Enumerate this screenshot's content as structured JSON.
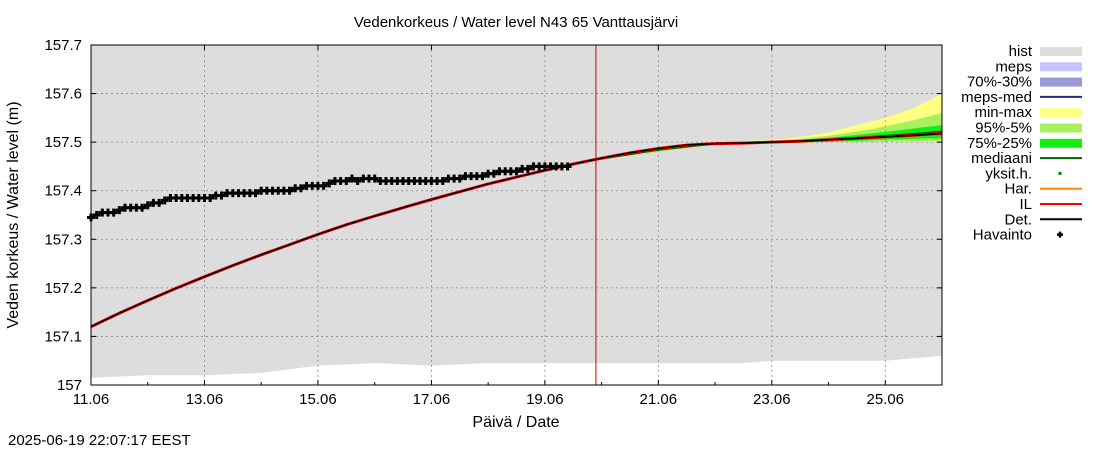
{
  "chart_data": {
    "type": "line",
    "title": "Vedenkorkeus / Water level   N43 65 Vanttausjärvi",
    "xlabel": "Päivä / Date",
    "ylabel": "Veden korkeus / Water level (m)",
    "timestamp": "2025-06-19 22:07:17 EEST",
    "xlim": [
      11.0,
      26.0
    ],
    "ylim": [
      157.0,
      157.7
    ],
    "x_ticks": [
      {
        "value": 11,
        "label": "11.06"
      },
      {
        "value": 13,
        "label": "13.06"
      },
      {
        "value": 15,
        "label": "15.06"
      },
      {
        "value": 17,
        "label": "17.06"
      },
      {
        "value": 19,
        "label": "19.06"
      },
      {
        "value": 21,
        "label": "21.06"
      },
      {
        "value": 23,
        "label": "23.06"
      },
      {
        "value": 25,
        "label": "25.06"
      }
    ],
    "y_ticks": [
      {
        "value": 157.0,
        "label": "157"
      },
      {
        "value": 157.1,
        "label": "157.1"
      },
      {
        "value": 157.2,
        "label": "157.2"
      },
      {
        "value": 157.3,
        "label": "157.3"
      },
      {
        "value": 157.4,
        "label": "157.4"
      },
      {
        "value": 157.5,
        "label": "157.5"
      },
      {
        "value": 157.6,
        "label": "157.6"
      },
      {
        "value": 157.7,
        "label": "157.7"
      }
    ],
    "forecast_start": 19.9,
    "legend": [
      {
        "key": "hist",
        "label": "hist",
        "color": "#dddddd",
        "style": "box"
      },
      {
        "key": "meps",
        "label": "meps",
        "color": "#c4c4ff",
        "style": "box"
      },
      {
        "key": "p70_30",
        "label": "70%-30%",
        "color": "#9a9ad8",
        "style": "box"
      },
      {
        "key": "meps_med",
        "label": "meps-med",
        "color": "#2a2a7a",
        "style": "line"
      },
      {
        "key": "minmax",
        "label": "min-max",
        "color": "#ffff80",
        "style": "box"
      },
      {
        "key": "p95_5",
        "label": "95%-5%",
        "color": "#a8f060",
        "style": "box"
      },
      {
        "key": "p75_25",
        "label": "75%-25%",
        "color": "#11ee11",
        "style": "box"
      },
      {
        "key": "mediaani",
        "label": "mediaani",
        "color": "#006400",
        "style": "line"
      },
      {
        "key": "yksith",
        "label": "yksit.h.",
        "color": "#008000",
        "style": "dot"
      },
      {
        "key": "har",
        "label": "Har.",
        "color": "#ff8c00",
        "style": "line"
      },
      {
        "key": "il",
        "label": "IL",
        "color": "#ff0000",
        "style": "line"
      },
      {
        "key": "det",
        "label": "Det.",
        "color": "#000000",
        "style": "line"
      },
      {
        "key": "havainto",
        "label": "Havainto",
        "color": "#000000",
        "style": "plus"
      }
    ],
    "series": [
      {
        "name": "hist",
        "type": "band",
        "x": [
          11.0,
          12.0,
          13.0,
          14.0,
          15.0,
          16.0,
          17.0,
          18.0,
          19.0,
          20.0,
          21.0,
          22.0,
          22.5,
          23.0,
          24.0,
          25.0,
          26.0
        ],
        "lower": [
          157.015,
          157.02,
          157.02,
          157.025,
          157.04,
          157.045,
          157.04,
          157.045,
          157.045,
          157.045,
          157.045,
          157.045,
          157.045,
          157.05,
          157.05,
          157.05,
          157.06
        ],
        "upper": [
          157.7,
          157.7,
          157.7,
          157.7,
          157.7,
          157.7,
          157.7,
          157.7,
          157.7,
          157.7,
          157.7,
          157.7,
          157.7,
          157.7,
          157.7,
          157.7,
          157.7
        ]
      },
      {
        "name": "min-max",
        "type": "band",
        "x": [
          20.0,
          21.0,
          22.0,
          23.0,
          23.5,
          24.0,
          24.5,
          25.0,
          25.5,
          26.0
        ],
        "lower": [
          157.465,
          157.48,
          157.495,
          157.498,
          157.498,
          157.5,
          157.5,
          157.5,
          157.5,
          157.502
        ],
        "upper": [
          157.468,
          157.49,
          157.5,
          157.505,
          157.51,
          157.52,
          157.535,
          157.55,
          157.57,
          157.6
        ]
      },
      {
        "name": "95%-5%",
        "type": "band",
        "x": [
          20.0,
          21.0,
          22.0,
          23.0,
          23.5,
          24.0,
          24.5,
          25.0,
          25.5,
          26.0
        ],
        "lower": [
          157.465,
          157.48,
          157.495,
          157.498,
          157.499,
          157.5,
          157.5,
          157.501,
          157.502,
          157.503
        ],
        "upper": [
          157.467,
          157.488,
          157.5,
          157.503,
          157.507,
          157.513,
          157.522,
          157.532,
          157.545,
          157.56
        ]
      },
      {
        "name": "75%-25%",
        "type": "band",
        "x": [
          20.0,
          21.0,
          22.0,
          23.0,
          23.5,
          24.0,
          24.5,
          25.0,
          25.5,
          26.0
        ],
        "lower": [
          157.466,
          157.482,
          157.496,
          157.499,
          157.5,
          157.501,
          157.503,
          157.505,
          157.507,
          157.508
        ],
        "upper": [
          157.467,
          157.486,
          157.499,
          157.502,
          157.505,
          157.509,
          157.515,
          157.521,
          157.528,
          157.535
        ]
      },
      {
        "name": "mediaani",
        "type": "line",
        "x": [
          20.0,
          21.0,
          22.0,
          23.0,
          23.5,
          24.0,
          24.5,
          25.0,
          25.5,
          26.0
        ],
        "y": [
          157.466,
          157.484,
          157.497,
          157.5,
          157.502,
          157.505,
          157.509,
          157.513,
          157.517,
          157.522
        ]
      },
      {
        "name": "Det.",
        "type": "line",
        "x": [
          11.0,
          11.5,
          12.0,
          12.5,
          13.0,
          13.5,
          14.0,
          14.5,
          15.0,
          15.5,
          16.0,
          16.5,
          17.0,
          17.5,
          18.0,
          18.5,
          19.0,
          19.5,
          20.0,
          20.5,
          21.0,
          21.5,
          22.0,
          22.5,
          23.0,
          23.5,
          24.0,
          24.5,
          25.0,
          25.5,
          26.0
        ],
        "y": [
          157.12,
          157.148,
          157.174,
          157.199,
          157.223,
          157.246,
          157.268,
          157.289,
          157.31,
          157.33,
          157.348,
          157.365,
          157.382,
          157.398,
          157.414,
          157.428,
          157.442,
          157.455,
          157.467,
          157.478,
          157.487,
          157.494,
          157.497,
          157.498,
          157.5,
          157.502,
          157.505,
          157.508,
          157.511,
          157.514,
          157.518
        ]
      },
      {
        "name": "Havainto",
        "type": "scatter",
        "x": [
          11.0,
          11.1,
          11.2,
          11.3,
          11.4,
          11.5,
          11.6,
          11.7,
          11.8,
          11.9,
          12.0,
          12.1,
          12.2,
          12.3,
          12.4,
          12.5,
          12.6,
          12.7,
          12.8,
          12.9,
          13.0,
          13.1,
          13.2,
          13.3,
          13.4,
          13.5,
          13.6,
          13.7,
          13.8,
          13.9,
          14.0,
          14.1,
          14.2,
          14.3,
          14.4,
          14.5,
          14.6,
          14.7,
          14.8,
          14.9,
          15.0,
          15.1,
          15.2,
          15.3,
          15.4,
          15.5,
          15.6,
          15.7,
          15.8,
          15.9,
          16.0,
          16.1,
          16.2,
          16.3,
          16.4,
          16.5,
          16.6,
          16.7,
          16.8,
          16.9,
          17.0,
          17.1,
          17.2,
          17.3,
          17.4,
          17.5,
          17.6,
          17.7,
          17.8,
          17.9,
          18.0,
          18.1,
          18.2,
          18.3,
          18.4,
          18.5,
          18.6,
          18.7,
          18.8,
          18.9,
          19.0,
          19.1,
          19.2,
          19.3,
          19.4
        ],
        "y": [
          157.345,
          157.35,
          157.355,
          157.355,
          157.355,
          157.36,
          157.365,
          157.365,
          157.365,
          157.365,
          157.37,
          157.375,
          157.375,
          157.38,
          157.385,
          157.385,
          157.385,
          157.385,
          157.385,
          157.385,
          157.385,
          157.385,
          157.39,
          157.39,
          157.395,
          157.395,
          157.395,
          157.395,
          157.395,
          157.395,
          157.4,
          157.4,
          157.4,
          157.4,
          157.4,
          157.4,
          157.405,
          157.405,
          157.41,
          157.41,
          157.41,
          157.41,
          157.415,
          157.42,
          157.42,
          157.42,
          157.425,
          157.42,
          157.425,
          157.425,
          157.425,
          157.42,
          157.42,
          157.42,
          157.42,
          157.42,
          157.42,
          157.42,
          157.42,
          157.42,
          157.42,
          157.42,
          157.42,
          157.425,
          157.425,
          157.425,
          157.43,
          157.43,
          157.43,
          157.43,
          157.435,
          157.435,
          157.44,
          157.44,
          157.44,
          157.44,
          157.445,
          157.445,
          157.45,
          157.45,
          157.45,
          157.45,
          157.45,
          157.45,
          157.45
        ]
      }
    ]
  }
}
